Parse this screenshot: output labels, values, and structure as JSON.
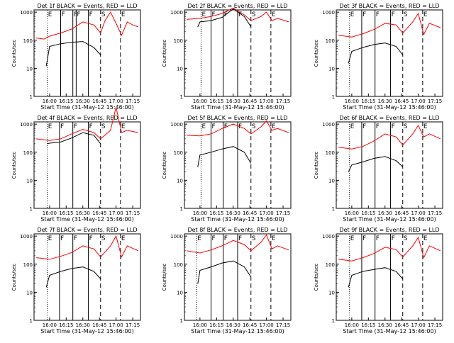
{
  "start_time_label": "Start Time (31-May-12 15:46:00)",
  "ylabel": "Counts/sec",
  "x_ticks": [
    "16:00",
    "16:15",
    "16:30",
    "16:45",
    "17:00",
    "17:15"
  ],
  "y_ticks": [
    "1",
    "10",
    "100",
    "1000"
  ],
  "marker_letters": {
    "E": "E",
    "F": "F",
    "S": "S"
  },
  "colors": {
    "events": "#000000",
    "lld": "#ff0000"
  },
  "chart_data": [
    {
      "type": "line",
      "title": "Det 1f BLACK = Events, RED = LLD",
      "xlabel": "Start Time (31-May-12 15:46:00)",
      "ylabel": "Counts/sec",
      "y_scale": "log",
      "ylim": [
        1,
        1200
      ],
      "xlim": [
        "15:46",
        "17:22"
      ],
      "markers": [
        {
          "label": "E",
          "x": "15:58",
          "style": "dotted"
        },
        {
          "label": "F",
          "x": "16:10",
          "style": "solid"
        },
        {
          "label": "F",
          "x": "16:21",
          "style": "solid"
        },
        {
          "label": "F",
          "x": "16:24",
          "style": "solid"
        },
        {
          "label": "F",
          "x": "16:35",
          "style": "solid"
        },
        {
          "label": "S",
          "x": "16:46",
          "style": "dashed"
        },
        {
          "label": "E",
          "x": "17:04",
          "style": "dashed"
        }
      ],
      "series": [
        {
          "name": "Events",
          "x": [
            "15:57",
            "16:00",
            "16:10",
            "16:20",
            "16:30",
            "16:40",
            "16:46"
          ],
          "values": [
            12,
            60,
            75,
            85,
            90,
            55,
            30
          ]
        },
        {
          "name": "LLD",
          "x": [
            "15:48",
            "15:55",
            "16:00",
            "16:10",
            "16:20",
            "16:30",
            "16:40",
            "16:46",
            "16:50",
            "16:55",
            "17:00",
            "17:05",
            "17:10",
            "17:15",
            "17:20"
          ],
          "values": [
            120,
            110,
            140,
            180,
            250,
            450,
            350,
            180,
            500,
            1000,
            400,
            150,
            450,
            350,
            300
          ]
        }
      ]
    },
    {
      "type": "line",
      "title": "Det 2f BLACK = Events, RED = LLD",
      "xlabel": "Start Time (31-May-12 15:46:00)",
      "ylabel": "Counts/sec",
      "y_scale": "log",
      "ylim": [
        1,
        1200
      ],
      "xlim": [
        "15:46",
        "17:22"
      ],
      "markers": [
        {
          "label": "E",
          "x": "16:01",
          "style": "dotted"
        },
        {
          "label": "F",
          "x": "16:10",
          "style": "solid"
        },
        {
          "label": "F",
          "x": "16:21",
          "style": "solid"
        },
        {
          "label": "F",
          "x": "16:34",
          "style": "solid"
        },
        {
          "label": "S",
          "x": "16:46",
          "style": "dashed"
        },
        {
          "label": "E",
          "x": "17:04",
          "style": "dashed"
        }
      ],
      "series": [
        {
          "name": "Events",
          "x": [
            "15:58",
            "16:00",
            "16:10",
            "16:20",
            "16:30",
            "16:40",
            "16:46"
          ],
          "values": [
            300,
            450,
            500,
            650,
            1300,
            700,
            300
          ]
        },
        {
          "name": "LLD",
          "x": [
            "15:48",
            "16:00",
            "16:10",
            "16:20",
            "16:30",
            "16:40",
            "16:46",
            "16:55",
            "17:00",
            "17:05",
            "17:10",
            "17:20"
          ],
          "values": [
            550,
            600,
            700,
            900,
            1400,
            800,
            500,
            700,
            1000,
            500,
            600,
            450
          ]
        }
      ]
    },
    {
      "type": "line",
      "title": "Det 3f BLACK = Events, RED = LLD",
      "xlabel": "Start Time (31-May-12 15:46:00)",
      "ylabel": "Counts/sec",
      "y_scale": "log",
      "ylim": [
        1,
        1200
      ],
      "xlim": [
        "15:46",
        "17:22"
      ],
      "markers": [
        {
          "label": "E",
          "x": "15:58",
          "style": "dotted"
        },
        {
          "label": "F",
          "x": "16:09",
          "style": "solid"
        },
        {
          "label": "F",
          "x": "16:21",
          "style": "solid"
        },
        {
          "label": "F",
          "x": "16:35",
          "style": "solid"
        },
        {
          "label": "S",
          "x": "16:46",
          "style": "dashed"
        },
        {
          "label": "E",
          "x": "17:04",
          "style": "dashed"
        }
      ],
      "series": [
        {
          "name": "Events",
          "x": [
            "15:57",
            "16:00",
            "16:10",
            "16:20",
            "16:30",
            "16:40",
            "16:46"
          ],
          "values": [
            15,
            40,
            55,
            70,
            80,
            60,
            30
          ]
        },
        {
          "name": "LLD",
          "x": [
            "15:48",
            "16:00",
            "16:10",
            "16:20",
            "16:30",
            "16:40",
            "16:46",
            "16:55",
            "17:00",
            "17:05",
            "17:10",
            "17:20"
          ],
          "values": [
            150,
            130,
            170,
            240,
            400,
            350,
            180,
            450,
            900,
            160,
            400,
            280
          ]
        }
      ]
    },
    {
      "type": "line",
      "title": "Det 4f BLACK = Events, RED = LLD",
      "xlabel": "Start Time (31-May-12 15:46:00)",
      "ylabel": "Counts/sec",
      "y_scale": "log",
      "ylim": [
        1,
        1200
      ],
      "xlim": [
        "15:46",
        "17:22"
      ],
      "markers": [
        {
          "label": "E",
          "x": "15:58",
          "style": "dotted"
        },
        {
          "label": "F",
          "x": "16:09",
          "style": "solid"
        },
        {
          "label": "F",
          "x": "16:21",
          "style": "solid"
        },
        {
          "label": "F",
          "x": "16:35",
          "style": "solid"
        },
        {
          "label": "S",
          "x": "16:46",
          "style": "dashed"
        },
        {
          "label": "E",
          "x": "17:04",
          "style": "dashed"
        }
      ],
      "series": [
        {
          "name": "Events",
          "x": [
            "15:58",
            "16:00",
            "16:10",
            "16:20",
            "16:30",
            "16:40",
            "16:46"
          ],
          "values": [
            200,
            210,
            230,
            320,
            500,
            400,
            200
          ]
        },
        {
          "name": "LLD",
          "x": [
            "15:48",
            "16:00",
            "16:10",
            "16:20",
            "16:30",
            "16:40",
            "16:46",
            "16:55",
            "17:00",
            "17:05",
            "17:10",
            "17:20"
          ],
          "values": [
            300,
            260,
            300,
            450,
            650,
            500,
            300,
            600,
            4000,
            500,
            600,
            500
          ]
        }
      ]
    },
    {
      "type": "line",
      "title": "Det 5f BLACK = Events, RED = LLD",
      "xlabel": "Start Time (31-May-12 15:46:00)",
      "ylabel": "Counts/sec",
      "y_scale": "log",
      "ylim": [
        1,
        1200
      ],
      "xlim": [
        "15:46",
        "17:22"
      ],
      "markers": [
        {
          "label": "E",
          "x": "16:01",
          "style": "dotted"
        },
        {
          "label": "F",
          "x": "16:10",
          "style": "solid"
        },
        {
          "label": "F",
          "x": "16:21",
          "style": "solid"
        },
        {
          "label": "F",
          "x": "16:34",
          "style": "solid"
        },
        {
          "label": "S",
          "x": "16:46",
          "style": "dashed"
        },
        {
          "label": "E",
          "x": "17:04",
          "style": "dashed"
        }
      ],
      "series": [
        {
          "name": "Events",
          "x": [
            "15:58",
            "16:00",
            "16:10",
            "16:20",
            "16:30",
            "16:40",
            "16:46"
          ],
          "values": [
            30,
            80,
            100,
            130,
            160,
            100,
            40
          ]
        },
        {
          "name": "LLD",
          "x": [
            "15:48",
            "16:00",
            "16:10",
            "16:20",
            "16:30",
            "16:40",
            "16:46",
            "16:55",
            "17:00",
            "17:05",
            "17:10",
            "17:20"
          ],
          "values": [
            400,
            380,
            450,
            700,
            1000,
            700,
            450,
            800,
            1300,
            600,
            700,
            500
          ]
        }
      ]
    },
    {
      "type": "line",
      "title": "Det 6f BLACK = Events, RED = LLD",
      "xlabel": "Start Time (31-May-12 15:46:00)",
      "ylabel": "Counts/sec",
      "y_scale": "log",
      "ylim": [
        1,
        1200
      ],
      "xlim": [
        "15:46",
        "17:22"
      ],
      "markers": [
        {
          "label": "E",
          "x": "15:58",
          "style": "dotted"
        },
        {
          "label": "F",
          "x": "16:09",
          "style": "solid"
        },
        {
          "label": "F",
          "x": "16:21",
          "style": "solid"
        },
        {
          "label": "F",
          "x": "16:35",
          "style": "solid"
        },
        {
          "label": "S",
          "x": "16:46",
          "style": "dashed"
        },
        {
          "label": "E",
          "x": "17:04",
          "style": "dashed"
        }
      ],
      "series": [
        {
          "name": "Events",
          "x": [
            "15:57",
            "16:00",
            "16:10",
            "16:20",
            "16:30",
            "16:40",
            "16:46"
          ],
          "values": [
            20,
            35,
            45,
            60,
            70,
            50,
            30
          ]
        },
        {
          "name": "LLD",
          "x": [
            "15:48",
            "16:00",
            "16:10",
            "16:20",
            "16:30",
            "16:40",
            "16:46",
            "16:55",
            "17:00",
            "17:05",
            "17:10",
            "17:20"
          ],
          "values": [
            150,
            130,
            160,
            250,
            450,
            350,
            180,
            450,
            900,
            350,
            450,
            300
          ]
        }
      ]
    },
    {
      "type": "line",
      "title": "Det 7f BLACK = Events, RED = LLD",
      "xlabel": "Start Time (31-May-12 15:46:00)",
      "ylabel": "Counts/sec",
      "y_scale": "log",
      "ylim": [
        1,
        1200
      ],
      "xlim": [
        "15:46",
        "17:22"
      ],
      "markers": [
        {
          "label": "E",
          "x": "15:58",
          "style": "dotted"
        },
        {
          "label": "F",
          "x": "16:09",
          "style": "solid"
        },
        {
          "label": "F",
          "x": "16:21",
          "style": "solid"
        },
        {
          "label": "F",
          "x": "16:35",
          "style": "solid"
        },
        {
          "label": "S",
          "x": "16:46",
          "style": "dashed"
        },
        {
          "label": "E",
          "x": "17:04",
          "style": "dashed"
        }
      ],
      "series": [
        {
          "name": "Events",
          "x": [
            "15:57",
            "16:00",
            "16:10",
            "16:20",
            "16:30",
            "16:40",
            "16:46"
          ],
          "values": [
            15,
            40,
            55,
            70,
            80,
            55,
            30
          ]
        },
        {
          "name": "LLD",
          "x": [
            "15:48",
            "16:00",
            "16:10",
            "16:20",
            "16:30",
            "16:40",
            "16:46",
            "16:55",
            "17:00",
            "17:05",
            "17:10",
            "17:20"
          ],
          "values": [
            170,
            150,
            190,
            260,
            450,
            350,
            180,
            450,
            1000,
            180,
            450,
            300
          ]
        }
      ]
    },
    {
      "type": "line",
      "title": "Det 8f BLACK = Events, RED = LLD",
      "xlabel": "Start Time (31-May-12 15:46:00)",
      "ylabel": "Counts/sec",
      "y_scale": "log",
      "ylim": [
        1,
        1200
      ],
      "xlim": [
        "15:46",
        "17:22"
      ],
      "markers": [
        {
          "label": "E",
          "x": "15:57",
          "style": "dotted"
        },
        {
          "label": "F",
          "x": "16:10",
          "style": "solid"
        },
        {
          "label": "F",
          "x": "16:21",
          "style": "solid"
        },
        {
          "label": "F",
          "x": "16:34",
          "style": "solid"
        },
        {
          "label": "S",
          "x": "16:46",
          "style": "dashed"
        },
        {
          "label": "E",
          "x": "17:04",
          "style": "dashed"
        }
      ],
      "series": [
        {
          "name": "Events",
          "x": [
            "15:58",
            "16:00",
            "16:10",
            "16:20",
            "16:30",
            "16:40",
            "16:46"
          ],
          "values": [
            20,
            60,
            80,
            110,
            130,
            80,
            35
          ]
        },
        {
          "name": "LLD",
          "x": [
            "15:48",
            "16:00",
            "16:10",
            "16:20",
            "16:30",
            "16:40",
            "16:46",
            "16:55",
            "17:00",
            "17:05",
            "17:10",
            "17:20"
          ],
          "values": [
            300,
            250,
            320,
            450,
            700,
            500,
            300,
            600,
            1100,
            350,
            450,
            320
          ]
        }
      ]
    },
    {
      "type": "line",
      "title": "Det 9f BLACK = Events, RED = LLD",
      "xlabel": "Start Time (31-May-12 15:46:00)",
      "ylabel": "Counts/sec",
      "y_scale": "log",
      "ylim": [
        1,
        1200
      ],
      "xlim": [
        "15:46",
        "17:22"
      ],
      "markers": [
        {
          "label": "E",
          "x": "15:58",
          "style": "dotted"
        },
        {
          "label": "F",
          "x": "16:09",
          "style": "solid"
        },
        {
          "label": "F",
          "x": "16:21",
          "style": "solid"
        },
        {
          "label": "F",
          "x": "16:35",
          "style": "solid"
        },
        {
          "label": "S",
          "x": "16:46",
          "style": "dashed"
        },
        {
          "label": "E",
          "x": "17:04",
          "style": "dashed"
        }
      ],
      "series": [
        {
          "name": "Events",
          "x": [
            "15:57",
            "16:00",
            "16:10",
            "16:20",
            "16:30",
            "16:40",
            "16:46"
          ],
          "values": [
            15,
            40,
            55,
            65,
            75,
            55,
            30
          ]
        },
        {
          "name": "LLD",
          "x": [
            "15:48",
            "16:00",
            "16:10",
            "16:20",
            "16:30",
            "16:40",
            "16:46",
            "16:55",
            "17:00",
            "17:05",
            "17:10",
            "17:20"
          ],
          "values": [
            150,
            130,
            170,
            240,
            400,
            330,
            180,
            450,
            900,
            170,
            450,
            300
          ]
        }
      ]
    }
  ]
}
